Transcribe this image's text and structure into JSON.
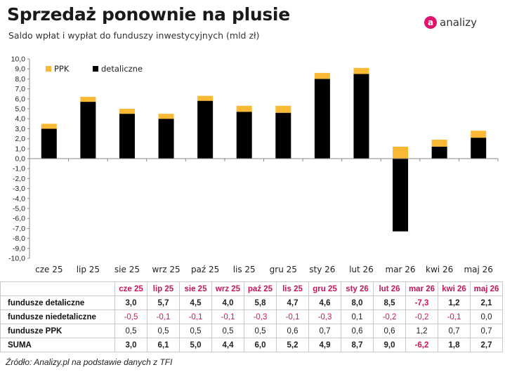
{
  "header": {
    "title": "Sprzedaż ponownie na plusie",
    "subtitle": "Saldo wpłat i wypłat do funduszy inwestycyjnych (mld zł)"
  },
  "logo": {
    "mark": "a",
    "text": "analizy",
    "mark_color": "#e2136e"
  },
  "chart_data": {
    "type": "bar",
    "stacked": true,
    "categories": [
      "cze 25",
      "lip 25",
      "sie 25",
      "wrz 25",
      "paź 25",
      "lis 25",
      "gru 25",
      "sty 26",
      "lut 26",
      "mar 26",
      "kwi 26",
      "maj 26"
    ],
    "series": [
      {
        "name": "PPK",
        "color": "#f9b934",
        "values": [
          0.5,
          0.5,
          0.5,
          0.5,
          0.5,
          0.6,
          0.7,
          0.6,
          0.6,
          1.2,
          0.7,
          0.7
        ]
      },
      {
        "name": "detaliczne",
        "color": "#000000",
        "values": [
          3.0,
          5.7,
          4.5,
          4.0,
          5.8,
          4.7,
          4.6,
          8.0,
          8.5,
          -7.3,
          1.2,
          2.1
        ]
      }
    ],
    "ylim": [
      -10,
      10
    ],
    "ytick_step": 1,
    "ytick_labels": [
      "10,0",
      "9,0",
      "8,0",
      "7,0",
      "6,0",
      "5,0",
      "4,0",
      "3,0",
      "2,0",
      "1,0",
      "0,0",
      "-1,0",
      "-2,0",
      "-3,0",
      "-4,0",
      "-5,0",
      "-6,0",
      "-7,0",
      "-8,0",
      "-9,0",
      "-10,0"
    ],
    "legend_position": "top-left",
    "grid": false
  },
  "table": {
    "columns": [
      "cze 25",
      "lip 25",
      "sie 25",
      "wrz 25",
      "paź 25",
      "lis 25",
      "gru 25",
      "sty 26",
      "lut 26",
      "mar 26",
      "kwi 26",
      "maj 26"
    ],
    "rows": [
      {
        "label": "fundusze detaliczne",
        "values": [
          "3,0",
          "5,7",
          "4,5",
          "4,0",
          "5,8",
          "4,7",
          "4,6",
          "8,0",
          "8,5",
          "-7,3",
          "1,2",
          "2,1"
        ],
        "bold": true
      },
      {
        "label": "fundusze niedetaliczne",
        "values": [
          "-0,5",
          "-0,1",
          "-0,1",
          "-0,1",
          "-0,3",
          "-0,1",
          "-0,3",
          "0,1",
          "-0,2",
          "-0,2",
          "-0,1",
          "0,0"
        ],
        "bold": false
      },
      {
        "label": "fundusze PPK",
        "values": [
          "0,5",
          "0,5",
          "0,5",
          "0,5",
          "0,5",
          "0,6",
          "0,7",
          "0,6",
          "0,6",
          "1,2",
          "0,7",
          "0,7"
        ],
        "bold": false
      },
      {
        "label": "SUMA",
        "values": [
          "3,0",
          "6,1",
          "5,0",
          "4,4",
          "6,0",
          "5,2",
          "4,9",
          "8,7",
          "9,0",
          "-6,2",
          "1,8",
          "2,7"
        ],
        "bold": true
      }
    ]
  },
  "source": "Źródło: Analizy.pl na podstawie danych z TFI"
}
